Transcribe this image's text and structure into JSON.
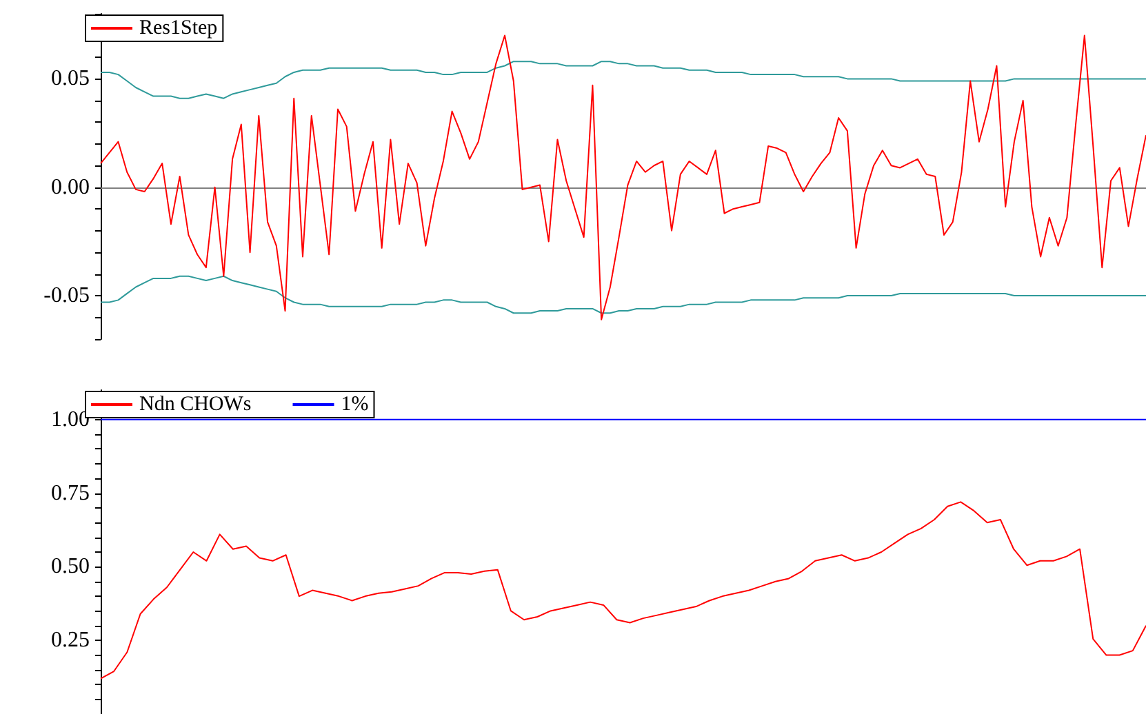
{
  "chart_data": [
    {
      "type": "line",
      "categories": [
        null,
        null,
        null,
        null,
        null,
        null,
        null,
        null,
        null,
        null,
        null,
        null,
        null,
        null,
        null,
        null,
        null,
        null,
        null,
        null,
        null,
        null,
        null,
        null,
        null,
        null,
        null,
        null,
        null,
        null,
        null,
        null,
        null,
        null,
        null,
        null,
        null,
        null,
        null,
        null,
        null,
        null,
        null,
        null,
        null,
        null,
        null,
        null,
        null,
        null,
        null,
        null,
        null,
        null,
        null,
        null,
        null,
        null,
        null,
        null,
        null,
        null,
        null,
        null,
        null,
        null,
        null,
        null,
        null,
        null,
        null,
        null,
        null,
        null,
        null,
        null,
        null,
        null,
        null,
        null,
        null,
        null,
        null,
        null,
        null,
        null,
        null,
        null,
        null,
        null,
        null,
        null,
        null,
        null,
        null,
        null,
        null,
        null,
        null,
        null,
        null,
        null,
        null,
        null,
        null,
        null,
        null,
        null,
        null,
        null,
        null,
        null,
        null,
        null,
        null,
        null,
        null,
        null,
        null,
        null
      ],
      "series": [
        {
          "name": "Res1Step",
          "color": "#ff0000",
          "values": [
            0.011,
            0.016,
            0.021,
            0.007,
            -0.001,
            -0.002,
            0.004,
            0.011,
            -0.017,
            0.005,
            -0.022,
            -0.031,
            -0.037,
            0.0,
            -0.041,
            0.013,
            0.029,
            -0.03,
            0.033,
            -0.016,
            -0.027,
            -0.057,
            0.041,
            -0.032,
            0.033,
            0.001,
            -0.031,
            0.036,
            0.028,
            -0.011,
            0.006,
            0.021,
            -0.028,
            0.022,
            -0.017,
            0.011,
            0.002,
            -0.027,
            -0.005,
            0.012,
            0.035,
            0.025,
            0.013,
            0.021,
            0.039,
            0.057,
            0.07,
            0.049,
            -0.001,
            0.0,
            0.001,
            -0.025,
            0.022,
            0.003,
            -0.01,
            -0.023,
            0.047,
            -0.061,
            -0.046,
            -0.023,
            0.001,
            0.012,
            0.007,
            0.01,
            0.012,
            -0.02,
            0.006,
            0.012,
            0.009,
            0.006,
            0.017,
            -0.012,
            -0.01,
            -0.009,
            -0.008,
            -0.007,
            0.019,
            0.018,
            0.016,
            0.006,
            -0.002,
            0.005,
            0.011,
            0.016,
            0.032,
            0.026,
            -0.028,
            -0.003,
            0.01,
            0.017,
            0.01,
            0.009,
            0.011,
            0.013,
            0.006,
            0.005,
            -0.022,
            -0.016,
            0.007,
            0.049,
            0.021,
            0.036,
            0.056,
            -0.009,
            0.021,
            0.04,
            -0.009,
            -0.032,
            -0.014,
            -0.027,
            -0.014,
            0.029,
            0.07,
            0.018,
            -0.037,
            0.003,
            0.009,
            -0.018,
            0.004,
            0.024
          ]
        },
        {
          "color": "#2e9a9a",
          "values": [
            0.053,
            0.053,
            0.052,
            0.049,
            0.046,
            0.044,
            0.042,
            0.042,
            0.042,
            0.041,
            0.041,
            0.042,
            0.043,
            0.042,
            0.041,
            0.043,
            0.044,
            0.045,
            0.046,
            0.047,
            0.048,
            0.051,
            0.053,
            0.054,
            0.054,
            0.054,
            0.055,
            0.055,
            0.055,
            0.055,
            0.055,
            0.055,
            0.055,
            0.054,
            0.054,
            0.054,
            0.054,
            0.053,
            0.053,
            0.052,
            0.052,
            0.053,
            0.053,
            0.053,
            0.053,
            0.055,
            0.056,
            0.058,
            0.058,
            0.058,
            0.057,
            0.057,
            0.057,
            0.056,
            0.056,
            0.056,
            0.056,
            0.058,
            0.058,
            0.057,
            0.057,
            0.056,
            0.056,
            0.056,
            0.055,
            0.055,
            0.055,
            0.054,
            0.054,
            0.054,
            0.053,
            0.053,
            0.053,
            0.053,
            0.052,
            0.052,
            0.052,
            0.052,
            0.052,
            0.052,
            0.051,
            0.051,
            0.051,
            0.051,
            0.051,
            0.05,
            0.05,
            0.05,
            0.05,
            0.05,
            0.05,
            0.049,
            0.049,
            0.049,
            0.049,
            0.049,
            0.049,
            0.049,
            0.049,
            0.049,
            0.049,
            0.049,
            0.049,
            0.049,
            0.05,
            0.05,
            0.05,
            0.05,
            0.05,
            0.05,
            0.05,
            0.05,
            0.05,
            0.05,
            0.05,
            0.05,
            0.05,
            0.05,
            0.05,
            0.05
          ]
        },
        {
          "color": "#2e9a9a",
          "values": [
            -0.053,
            -0.053,
            -0.052,
            -0.049,
            -0.046,
            -0.044,
            -0.042,
            -0.042,
            -0.042,
            -0.041,
            -0.041,
            -0.042,
            -0.043,
            -0.042,
            -0.041,
            -0.043,
            -0.044,
            -0.045,
            -0.046,
            -0.047,
            -0.048,
            -0.051,
            -0.053,
            -0.054,
            -0.054,
            -0.054,
            -0.055,
            -0.055,
            -0.055,
            -0.055,
            -0.055,
            -0.055,
            -0.055,
            -0.054,
            -0.054,
            -0.054,
            -0.054,
            -0.053,
            -0.053,
            -0.052,
            -0.052,
            -0.053,
            -0.053,
            -0.053,
            -0.053,
            -0.055,
            -0.056,
            -0.058,
            -0.058,
            -0.058,
            -0.057,
            -0.057,
            -0.057,
            -0.056,
            -0.056,
            -0.056,
            -0.056,
            -0.058,
            -0.058,
            -0.057,
            -0.057,
            -0.056,
            -0.056,
            -0.056,
            -0.055,
            -0.055,
            -0.055,
            -0.054,
            -0.054,
            -0.054,
            -0.053,
            -0.053,
            -0.053,
            -0.053,
            -0.052,
            -0.052,
            -0.052,
            -0.052,
            -0.052,
            -0.052,
            -0.051,
            -0.051,
            -0.051,
            -0.051,
            -0.051,
            -0.05,
            -0.05,
            -0.05,
            -0.05,
            -0.05,
            -0.05,
            -0.049,
            -0.049,
            -0.049,
            -0.049,
            -0.049,
            -0.049,
            -0.049,
            -0.049,
            -0.049,
            -0.049,
            -0.049,
            -0.049,
            -0.049,
            -0.05,
            -0.05,
            -0.05,
            -0.05,
            -0.05,
            -0.05,
            -0.05,
            -0.05,
            -0.05,
            -0.05,
            -0.05,
            -0.05,
            -0.05,
            -0.05,
            -0.05,
            -0.05
          ]
        }
      ],
      "ylim": [
        -0.07,
        0.08
      ],
      "yticks": [
        {
          "value": -0.07,
          "label": null
        },
        {
          "value": -0.06,
          "label": null
        },
        -0.05,
        {
          "value": -0.04,
          "label": null
        },
        {
          "value": -0.03,
          "label": null
        },
        {
          "value": -0.02,
          "label": null
        },
        {
          "value": -0.01,
          "label": null
        },
        {
          "value": 0,
          "label": "0.00"
        },
        {
          "value": 0.01,
          "label": null
        },
        {
          "value": 0.02,
          "label": null
        },
        {
          "value": 0.03,
          "label": null
        },
        {
          "value": 0.04,
          "label": null
        },
        0.05,
        {
          "value": 0.06,
          "label": null
        },
        {
          "value": 0.07,
          "label": null
        },
        {
          "value": 0.08,
          "label": null
        }
      ],
      "ref_lines": [
        {
          "axis": "y",
          "value": 0,
          "color": "#808080"
        }
      ],
      "legend": "top left",
      "tick_labels": "y",
      "grid": false
    },
    {
      "type": "line",
      "categories": [
        null,
        null,
        null,
        null,
        null,
        null,
        null,
        null,
        null,
        null,
        null,
        null,
        null,
        null,
        null,
        null,
        null,
        null,
        null,
        null,
        null,
        null,
        null,
        null,
        null,
        null,
        null,
        null,
        null,
        null,
        null,
        null,
        null,
        null,
        null,
        null,
        null,
        null,
        null,
        null,
        null,
        null,
        null,
        null,
        null,
        null,
        null,
        null,
        null,
        null,
        null,
        null,
        null,
        null,
        null,
        null,
        null,
        null,
        null,
        null,
        null,
        null,
        null,
        null,
        null,
        null,
        null,
        null,
        null,
        null,
        null,
        null,
        null,
        null,
        null,
        null,
        null,
        null,
        null,
        null
      ],
      "series": [
        {
          "name": "Ndn CHOWs",
          "color": "#ff0000",
          "values": [
            0.12,
            0.145,
            0.21,
            0.34,
            0.39,
            0.43,
            0.49,
            0.55,
            0.52,
            0.61,
            0.56,
            0.57,
            0.53,
            0.52,
            0.54,
            0.4,
            0.42,
            0.41,
            0.4,
            0.385,
            0.4,
            0.41,
            0.415,
            0.425,
            0.435,
            0.46,
            0.48,
            0.48,
            0.475,
            0.485,
            0.49,
            0.35,
            0.32,
            0.33,
            0.35,
            0.36,
            0.37,
            0.38,
            0.37,
            0.32,
            0.31,
            0.325,
            0.335,
            0.345,
            0.355,
            0.365,
            0.385,
            0.4,
            0.41,
            0.42,
            0.435,
            0.45,
            0.46,
            0.485,
            0.52,
            0.53,
            0.54,
            0.52,
            0.53,
            0.55,
            0.58,
            0.61,
            0.63,
            0.66,
            0.705,
            0.72,
            0.69,
            0.65,
            0.66,
            0.56,
            0.505,
            0.52,
            0.52,
            0.535,
            0.56,
            0.255,
            0.2,
            0.2,
            0.215,
            0.3
          ]
        },
        {
          "name": "1%",
          "color": "#0000ff",
          "values": [
            1,
            1,
            1,
            1,
            1,
            1,
            1,
            1,
            1,
            1,
            1,
            1,
            1,
            1,
            1,
            1,
            1,
            1,
            1,
            1,
            1,
            1,
            1,
            1,
            1,
            1,
            1,
            1,
            1,
            1,
            1,
            1,
            1,
            1,
            1,
            1,
            1,
            1,
            1,
            1,
            1,
            1,
            1,
            1,
            1,
            1,
            1,
            1,
            1,
            1,
            1,
            1,
            1,
            1,
            1,
            1,
            1,
            1,
            1,
            1,
            1,
            1,
            1,
            1,
            1,
            1,
            1,
            1,
            1,
            1,
            1,
            1,
            1,
            1,
            1,
            1,
            1,
            1,
            1,
            1
          ]
        }
      ],
      "ylim": [
        0,
        1.1
      ],
      "yticks": [
        {
          "value": 0.05,
          "label": null
        },
        {
          "value": 0.1,
          "label": null
        },
        {
          "value": 0.15,
          "label": null
        },
        {
          "value": 0.2,
          "label": null
        },
        0.25,
        {
          "value": 0.3,
          "label": null
        },
        {
          "value": 0.35,
          "label": null
        },
        {
          "value": 0.4,
          "label": null
        },
        {
          "value": 0.45,
          "label": null
        },
        {
          "value": 0.5,
          "label": "0.50"
        },
        {
          "value": 0.55,
          "label": null
        },
        {
          "value": 0.6,
          "label": null
        },
        {
          "value": 0.65,
          "label": null
        },
        {
          "value": 0.7,
          "label": null
        },
        0.75,
        {
          "value": 0.8,
          "label": null
        },
        {
          "value": 0.85,
          "label": null
        },
        {
          "value": 0.9,
          "label": null
        },
        {
          "value": 0.95,
          "label": null
        },
        {
          "value": 1,
          "label": "1.00"
        },
        {
          "value": 1.05,
          "label": null
        }
      ],
      "legend": "top left",
      "tick_labels": "y",
      "grid": false
    }
  ]
}
